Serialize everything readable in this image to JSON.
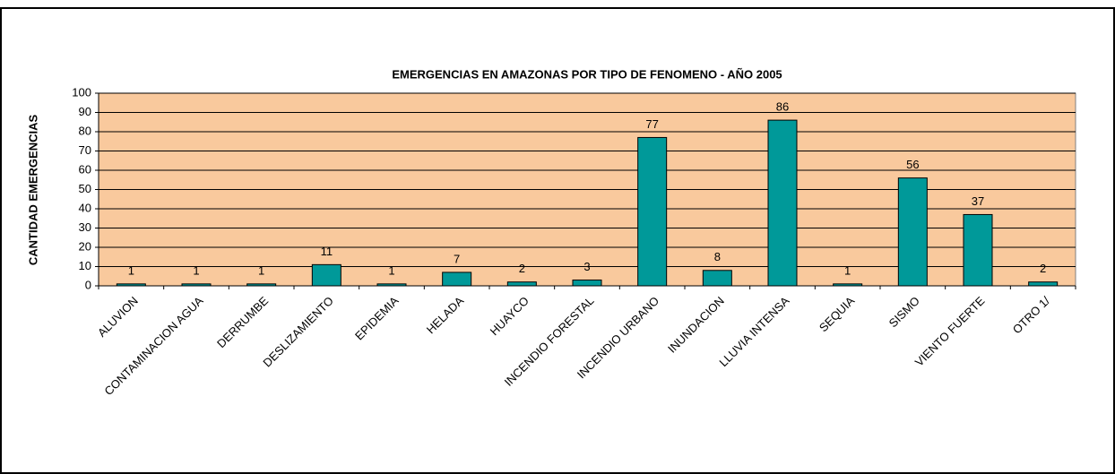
{
  "chart_data": {
    "type": "bar",
    "title": "EMERGENCIAS EN AMAZONAS POR TIPO DE  FENOMENO - AÑO 2005",
    "y_label": "CANTIDAD EMERGENCIAS",
    "categories": [
      "ALUVION",
      "CONTAMINACION AGUA",
      "DERRUMBE",
      "DESLIZAMIENTO",
      "EPIDEMIA",
      "HELADA",
      "HUAYCO",
      "INCENDIO FORESTAL",
      "INCENDIO URBANO",
      "INUNDACION",
      "LLUVIA INTENSA",
      "SEQUIA",
      "SISMO",
      "VIENTO FUERTE",
      "OTRO 1/"
    ],
    "values": [
      1,
      1,
      1,
      11,
      1,
      7,
      2,
      3,
      77,
      8,
      86,
      1,
      56,
      37,
      2
    ],
    "color": "#009999",
    "background": "#f9c99d",
    "ylim": [
      0,
      100
    ],
    "yticks": [
      0,
      10,
      20,
      30,
      40,
      50,
      60,
      70,
      80,
      90,
      100
    ],
    "grid": true
  }
}
